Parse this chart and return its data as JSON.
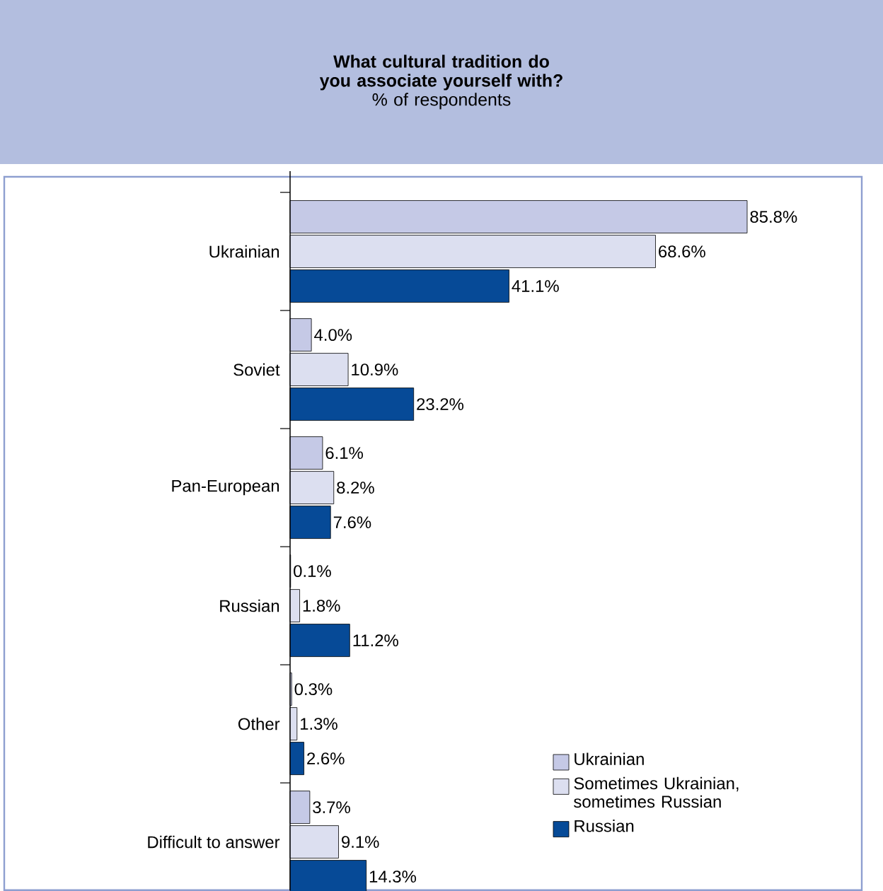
{
  "chart_data": {
    "type": "bar",
    "orientation": "horizontal",
    "title": "What cultural tradition do you associate yourself with?",
    "subtitle": "% of respondents",
    "categories": [
      "Ukrainian",
      "Soviet",
      "Pan-European",
      "Russian",
      "Other",
      "Difficult to answer"
    ],
    "series": [
      {
        "name": "Ukrainian",
        "color": "#c5c9e6",
        "values": [
          85.8,
          4.0,
          6.1,
          0.1,
          0.3,
          3.7
        ],
        "value_labels": [
          "85.8%",
          "4.0%",
          "6.1%",
          "0.1%",
          "0.3%",
          "3.7%"
        ]
      },
      {
        "name": "Sometimes Ukrainian, sometimes Russian",
        "color": "#dcdff0",
        "values": [
          68.6,
          10.9,
          8.2,
          1.8,
          1.3,
          9.1
        ],
        "value_labels": [
          "68.6%",
          "10.9%",
          "8.2%",
          "1.8%",
          "1.3%",
          "9.1%"
        ]
      },
      {
        "name": "Russian",
        "color": "#064a97",
        "values": [
          41.1,
          23.2,
          7.6,
          11.2,
          2.6,
          14.3
        ],
        "value_labels": [
          "41.1%",
          "23.2%",
          "7.6%",
          "11.2%",
          "2.6%",
          "14.3%"
        ]
      }
    ],
    "legend": "bottom right"
  }
}
